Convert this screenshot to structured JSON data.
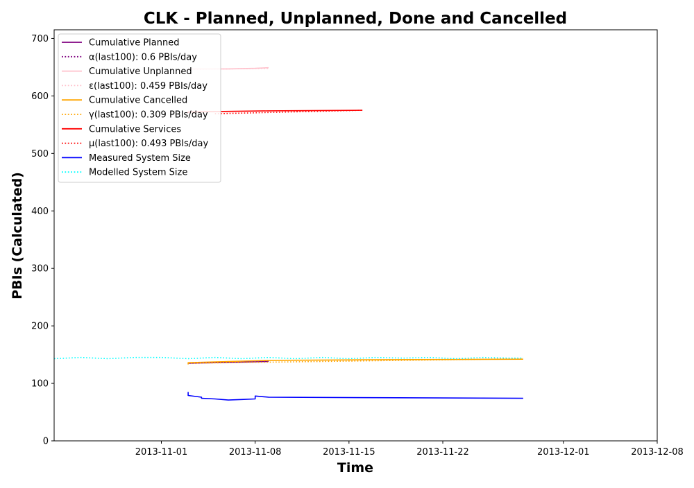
{
  "chart_data": {
    "type": "line",
    "title": "CLK - Planned, Unplanned, Done  and Cancelled",
    "xlabel": "Time",
    "ylabel": "PBIs (Calculated)",
    "xlim": [
      "2013-10-24",
      "2013-12-08"
    ],
    "ylim": [
      0,
      715
    ],
    "xticks": [
      "2013-11-01",
      "2013-11-08",
      "2013-11-15",
      "2013-11-22",
      "2013-12-01",
      "2013-12-08"
    ],
    "yticks": [
      0,
      100,
      200,
      300,
      400,
      500,
      600,
      700
    ],
    "grid": false,
    "legend_position": "upper-left",
    "series": [
      {
        "name": "Cumulative Planned",
        "color": "#800080",
        "style": "solid",
        "points": [
          [
            "2013-11-03",
            135
          ],
          [
            "2013-11-05",
            136
          ],
          [
            "2013-11-07",
            137
          ],
          [
            "2013-11-09",
            138
          ]
        ]
      },
      {
        "name": "α(last100): 0.6 PBIs/day",
        "color": "#800080",
        "style": "dotted",
        "points": [
          [
            "2013-11-05",
            136
          ],
          [
            "2013-11-07",
            137
          ],
          [
            "2013-11-09",
            139
          ]
        ]
      },
      {
        "name": "Cumulative Unplanned",
        "color": "#ffc0cb",
        "style": "solid",
        "points": [
          [
            "2013-11-03",
            647
          ],
          [
            "2013-11-06",
            647
          ],
          [
            "2013-11-08",
            648
          ],
          [
            "2013-11-09",
            649
          ]
        ]
      },
      {
        "name": "ε(last100): 0.459 PBIs/day",
        "color": "#ffc0cb",
        "style": "dotted",
        "points": [
          [
            "2013-11-03",
            646
          ],
          [
            "2013-11-09",
            648
          ]
        ]
      },
      {
        "name": "Cumulative Cancelled",
        "color": "#ffa500",
        "style": "solid",
        "points": [
          [
            "2013-11-03",
            133
          ],
          [
            "2013-11-03",
            136
          ],
          [
            "2013-11-06",
            138
          ],
          [
            "2013-11-09",
            140
          ],
          [
            "2013-11-16",
            141
          ],
          [
            "2013-11-28",
            142
          ]
        ]
      },
      {
        "name": "γ(last100): 0.309 PBIs/day",
        "color": "#ffa500",
        "style": "dotted",
        "points": [
          [
            "2013-11-03",
            135
          ],
          [
            "2013-11-16",
            139
          ],
          [
            "2013-11-28",
            143
          ]
        ]
      },
      {
        "name": "Cumulative Services",
        "color": "#ff0000",
        "style": "solid",
        "points": [
          [
            "2013-11-03",
            570
          ],
          [
            "2013-11-03",
            572
          ],
          [
            "2013-11-09",
            574
          ],
          [
            "2013-11-16",
            575
          ]
        ]
      },
      {
        "name": "μ(last100): 0.493 PBIs/day",
        "color": "#ff0000",
        "style": "dotted",
        "points": [
          [
            "2013-11-05",
            569
          ],
          [
            "2013-11-16",
            575
          ]
        ]
      },
      {
        "name": "Measured System Size",
        "color": "#0000ff",
        "style": "solid",
        "points": [
          [
            "2013-11-03",
            85
          ],
          [
            "2013-11-03",
            80
          ],
          [
            "2013-11-03",
            79
          ],
          [
            "2013-11-04",
            76
          ],
          [
            "2013-11-04",
            74
          ],
          [
            "2013-11-05",
            73
          ],
          [
            "2013-11-06",
            71
          ],
          [
            "2013-11-07",
            72
          ],
          [
            "2013-11-08",
            73
          ],
          [
            "2013-11-08",
            78
          ],
          [
            "2013-11-09",
            76
          ],
          [
            "2013-11-28",
            74
          ]
        ]
      },
      {
        "name": "Modelled System Size",
        "color": "#00ffff",
        "style": "dotted",
        "points": [
          [
            "2013-10-24",
            143
          ],
          [
            "2013-10-26",
            145
          ],
          [
            "2013-10-28",
            143
          ],
          [
            "2013-10-30",
            145
          ],
          [
            "2013-11-01",
            145
          ],
          [
            "2013-11-03",
            143
          ],
          [
            "2013-11-05",
            145
          ],
          [
            "2013-11-07",
            143
          ],
          [
            "2013-11-09",
            145
          ],
          [
            "2013-11-11",
            143
          ],
          [
            "2013-11-13",
            145
          ],
          [
            "2013-11-15",
            143
          ],
          [
            "2013-11-17",
            145
          ],
          [
            "2013-11-19",
            144
          ],
          [
            "2013-11-21",
            145
          ],
          [
            "2013-11-23",
            143
          ],
          [
            "2013-11-25",
            145
          ],
          [
            "2013-11-27",
            144
          ],
          [
            "2013-11-28",
            144
          ]
        ]
      }
    ]
  }
}
